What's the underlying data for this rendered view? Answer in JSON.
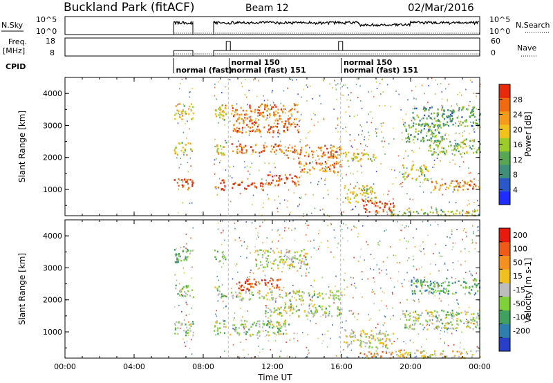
{
  "header": {
    "title": "Buckland Park (fitACF)",
    "beam": "Beam 12",
    "date": "02/Mar/2016"
  },
  "sky_panel": {
    "left_label": "N.Sky",
    "right_label": "N.Search",
    "left_ticks": [
      "10^5",
      "10^0"
    ],
    "right_ticks": [
      "10^5",
      "10^0"
    ]
  },
  "freq_panel": {
    "left_label_1": "Freq.",
    "left_label_2": "[MHz]",
    "right_label": "Nave",
    "left_ticks": [
      "18",
      "8"
    ],
    "right_ticks": [
      "60",
      "0"
    ]
  },
  "cpid": {
    "label": "CPID",
    "entries": [
      {
        "text": "normal (fast)",
        "time": 6.3,
        "row": 1
      },
      {
        "text": "normal 150",
        "time": 9.5,
        "row": 0
      },
      {
        "text": "normal (fast) 151",
        "time": 9.5,
        "row": 1
      },
      {
        "text": "normal 150",
        "time": 16.0,
        "row": 0
      },
      {
        "text": "normal (fast) 151",
        "time": 16.0,
        "row": 1
      }
    ]
  },
  "power_colorbar": {
    "label": "Power [dB]",
    "ticks": [
      "4",
      "8",
      "12",
      "16",
      "20",
      "24",
      "28"
    ],
    "colors": [
      "#1f2bff",
      "#2a58c8",
      "#3f8f7a",
      "#58a654",
      "#9ccc2a",
      "#f2c21c",
      "#f59a1a",
      "#f06a12",
      "#e82a0c"
    ]
  },
  "velocity_colorbar": {
    "label": "Velocity [m s-1]",
    "ticks": [
      "200",
      "100",
      "50",
      "15",
      "-15",
      "-50",
      "-100",
      "-200"
    ],
    "colors": [
      "#2a3fc8",
      "#2e7fae",
      "#3fa060",
      "#7fd03a",
      "#bdbdbd",
      "#f0c020",
      "#f59020",
      "#f05a18",
      "#e81a0c"
    ]
  },
  "x_ticks": [
    "00:00",
    "04:00",
    "08:00",
    "12:00",
    "16:00",
    "20:00",
    "00:00"
  ],
  "x_label": "Time UT",
  "y_label": "Slant Range [km]",
  "y_ticks": [
    "1000",
    "2000",
    "3000",
    "4000"
  ],
  "chart_data": [
    {
      "type": "heatmap",
      "name": "power",
      "x_range_hours": [
        0,
        24
      ],
      "y_range_km": [
        180,
        4500
      ],
      "color_scale_db": [
        0,
        32
      ],
      "gaps_hours": [
        [
          0,
          6.3
        ],
        [
          7.4,
          8.6
        ],
        [
          9.3,
          9.5
        ]
      ],
      "bands": [
        {
          "t0": 6.3,
          "t1": 9.4,
          "r0": 1000,
          "r1": 1350,
          "level": 0.9
        },
        {
          "t0": 9.6,
          "t1": 11.5,
          "r0": 1000,
          "r1": 1250,
          "level": 0.95
        },
        {
          "t0": 11.5,
          "t1": 13.5,
          "r0": 1150,
          "r1": 1500,
          "level": 0.88
        },
        {
          "t0": 13.5,
          "t1": 16.0,
          "r0": 1550,
          "r1": 1900,
          "level": 0.8
        },
        {
          "t0": 16.1,
          "t1": 18.0,
          "r0": 600,
          "r1": 1150,
          "level": 0.6
        },
        {
          "t0": 17.2,
          "t1": 19.0,
          "r0": 300,
          "r1": 700,
          "level": 0.93
        },
        {
          "t0": 18.8,
          "t1": 24.0,
          "r0": 200,
          "r1": 400,
          "level": 0.5
        },
        {
          "t0": 19.5,
          "t1": 21.0,
          "r0": 1300,
          "r1": 1800,
          "level": 0.55
        },
        {
          "t0": 21.0,
          "t1": 24.0,
          "r0": 1000,
          "r1": 1300,
          "level": 0.75
        },
        {
          "t0": 6.3,
          "t1": 9.4,
          "r0": 2100,
          "r1": 2500,
          "level": 0.55
        },
        {
          "t0": 9.6,
          "t1": 12.5,
          "r0": 2150,
          "r1": 2450,
          "level": 0.85
        },
        {
          "t0": 12.5,
          "t1": 16.0,
          "r0": 2000,
          "r1": 2400,
          "level": 0.75
        },
        {
          "t0": 16.0,
          "t1": 18.0,
          "r0": 1900,
          "r1": 2200,
          "level": 0.6
        },
        {
          "t0": 19.5,
          "t1": 22.0,
          "r0": 2500,
          "r1": 3100,
          "level": 0.4
        },
        {
          "t0": 21.0,
          "t1": 24.0,
          "r0": 2100,
          "r1": 2600,
          "level": 0.45
        },
        {
          "t0": 6.3,
          "t1": 9.4,
          "r0": 3200,
          "r1": 3700,
          "level": 0.6
        },
        {
          "t0": 9.6,
          "t1": 13.5,
          "r0": 2800,
          "r1": 3700,
          "level": 0.8
        },
        {
          "t0": 20.0,
          "t1": 24.0,
          "r0": 3000,
          "r1": 3600,
          "level": 0.35
        }
      ]
    },
    {
      "type": "heatmap",
      "name": "velocity",
      "x_range_hours": [
        0,
        24
      ],
      "y_range_km": [
        180,
        4500
      ],
      "color_scale_ms": [
        -250,
        250
      ],
      "gaps_hours": [
        [
          0,
          6.3
        ],
        [
          7.4,
          8.6
        ],
        [
          9.3,
          9.5
        ]
      ],
      "bands": [
        {
          "t0": 6.3,
          "t1": 13.0,
          "r0": 900,
          "r1": 1400,
          "level": 0.45
        },
        {
          "t0": 11.5,
          "t1": 16.0,
          "r0": 1500,
          "r1": 1900,
          "level": 0.47
        },
        {
          "t0": 16.1,
          "t1": 19.0,
          "r0": 500,
          "r1": 1100,
          "level": 0.52
        },
        {
          "t0": 17.0,
          "t1": 19.0,
          "r0": 200,
          "r1": 400,
          "level": 0.7
        },
        {
          "t0": 19.0,
          "t1": 24.0,
          "r0": 200,
          "r1": 450,
          "level": 0.58
        },
        {
          "t0": 19.5,
          "t1": 24.0,
          "r0": 1100,
          "r1": 1700,
          "level": 0.46
        },
        {
          "t0": 6.3,
          "t1": 9.4,
          "r0": 2100,
          "r1": 2500,
          "level": 0.4
        },
        {
          "t0": 9.6,
          "t1": 16.0,
          "r0": 2000,
          "r1": 2300,
          "level": 0.47
        },
        {
          "t0": 10.0,
          "t1": 12.5,
          "r0": 2300,
          "r1": 2700,
          "level": 0.85
        },
        {
          "t0": 20.0,
          "t1": 24.0,
          "r0": 2200,
          "r1": 2700,
          "level": 0.3
        },
        {
          "t0": 6.3,
          "t1": 9.4,
          "r0": 3200,
          "r1": 3600,
          "level": 0.35
        },
        {
          "t0": 11.0,
          "t1": 14.0,
          "r0": 3000,
          "r1": 3600,
          "level": 0.5
        }
      ]
    }
  ]
}
